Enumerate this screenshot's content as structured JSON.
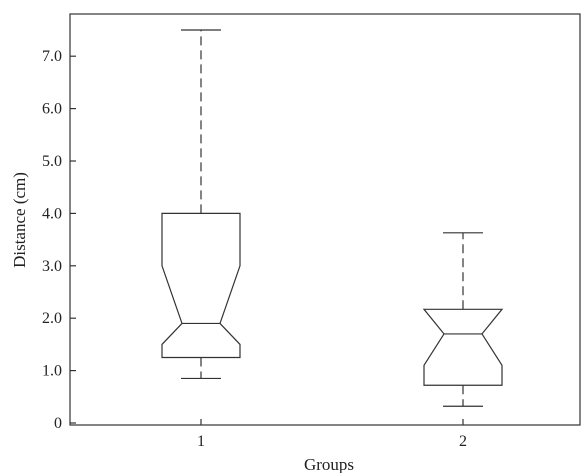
{
  "chart_data": {
    "type": "boxplot",
    "xlabel": "Groups",
    "ylabel": "Distance (cm)",
    "ylim": [
      0,
      7.7
    ],
    "yticks": [
      0,
      1,
      2,
      3,
      4,
      5,
      6,
      7
    ],
    "ytick_labels": [
      "0",
      "1.0",
      "2.0",
      "3.0",
      "4.0",
      "5.0",
      "6.0",
      "7.0"
    ],
    "categories": [
      "1",
      "2"
    ],
    "boxes": [
      {
        "category": "1",
        "min": 0.85,
        "q1": 1.25,
        "notch_low": 1.5,
        "median": 1.9,
        "notch_high": 3.0,
        "q3": 4.0,
        "max": 7.5
      },
      {
        "category": "2",
        "min": 0.32,
        "q1": 0.72,
        "notch_low": 1.1,
        "median": 1.7,
        "notch_high": 2.17,
        "q3": 2.17,
        "max": 3.63
      }
    ],
    "grid": false,
    "legend": "none"
  }
}
